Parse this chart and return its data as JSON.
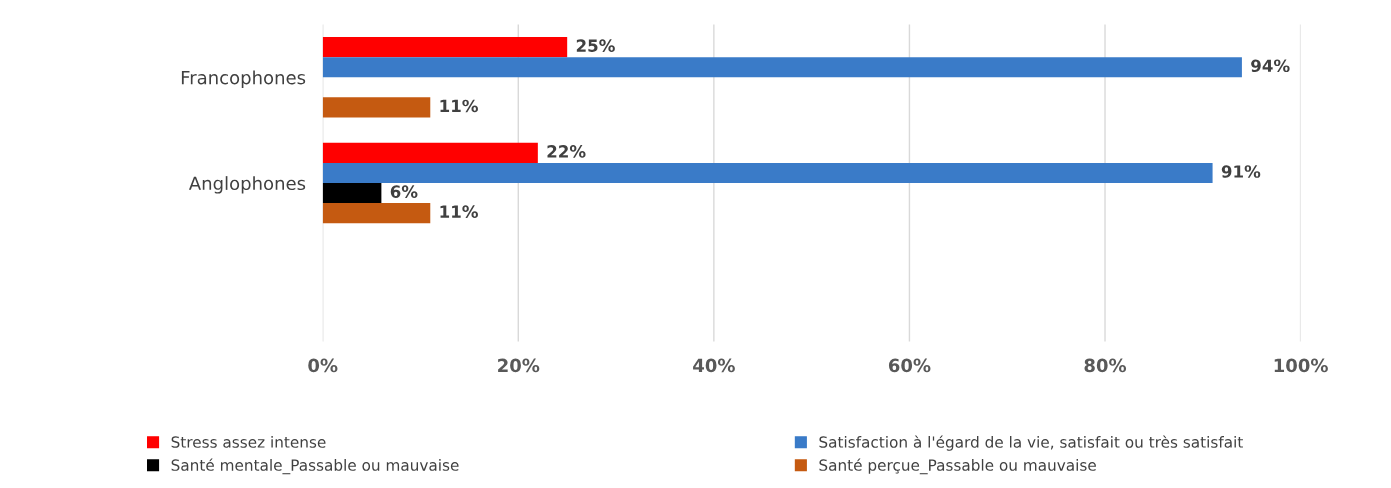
{
  "chart_data": {
    "type": "bar",
    "orientation": "horizontal",
    "categories": [
      "Francophones",
      "Anglophones",
      null
    ],
    "series": [
      {
        "name": "Stress assez intense",
        "color": "#ff0000",
        "values": [
          25,
          22,
          null
        ],
        "value_labels": [
          "25%",
          "22%",
          null
        ]
      },
      {
        "name": "Satisfaction à l'égard de la vie, satisfait ou très satisfait",
        "color": "#3a7bc8",
        "values": [
          94,
          91,
          null
        ],
        "value_labels": [
          "94%",
          "91%",
          null
        ]
      },
      {
        "name": "Santé mentale_Passable ou mauvaise",
        "color": "#000000",
        "values": [
          null,
          6,
          null
        ],
        "value_labels": [
          null,
          "6%",
          null
        ]
      },
      {
        "name": "Santé perçue_Passable ou mauvaise",
        "color": "#c55a11",
        "values": [
          11,
          11,
          null
        ],
        "value_labels": [
          "11%",
          "11%",
          null
        ]
      }
    ],
    "xlim": [
      0,
      100
    ],
    "xticks": [
      {
        "value": 0,
        "label": "0%"
      },
      {
        "value": 20,
        "label": "20%"
      },
      {
        "value": 40,
        "label": "40%"
      },
      {
        "value": 60,
        "label": "60%"
      },
      {
        "value": 80,
        "label": "80%"
      },
      {
        "value": 100,
        "label": "100%"
      }
    ],
    "grid": "x",
    "legend": "bottom"
  }
}
